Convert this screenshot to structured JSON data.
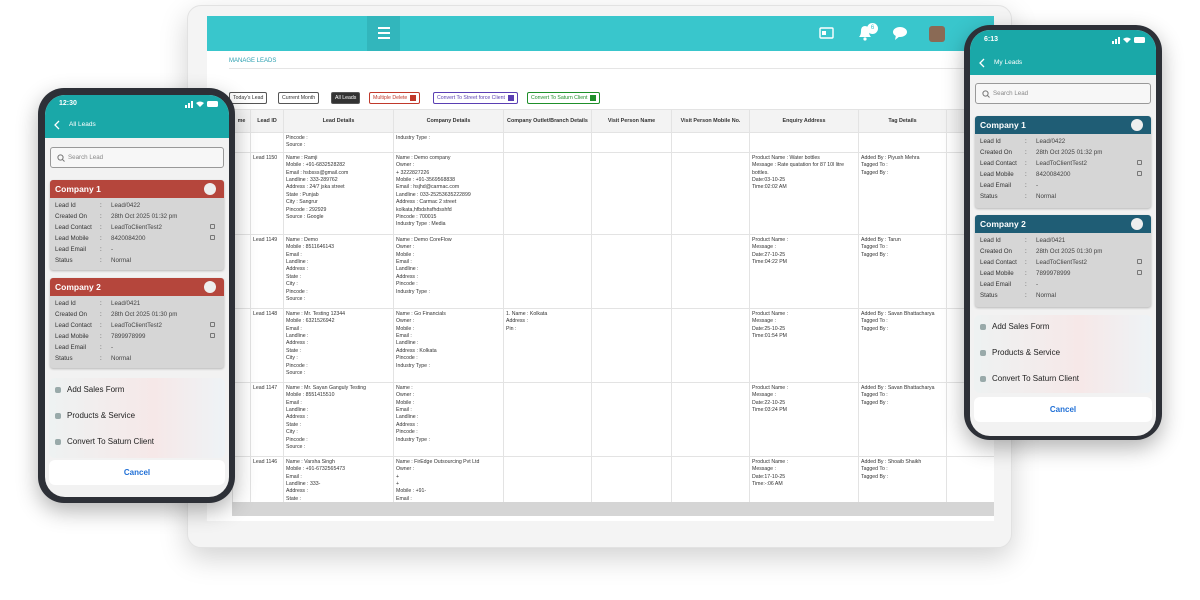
{
  "tablet": {
    "notification_count": "6",
    "breadcrumb": "MANAGE LEADS",
    "filters": [
      "Today's Lead",
      "Current Month",
      "All Leads",
      "Multiple Delete",
      "Convert To Street force Client",
      "Convert To Saturn Client"
    ],
    "columns": [
      "me",
      "Lead ID",
      "Lead Details",
      "Company Details",
      "Company Outlet/Branch Details",
      "Visit Person Name",
      "Visit Person Mobile No.",
      "Enquiry Address",
      "Tag Details"
    ],
    "rows": [
      {
        "lead_details": [
          "Pincode :",
          "Source :"
        ],
        "company_details": [
          "Industry Type :"
        ]
      },
      {
        "lead_id": "Lead 1150",
        "lead_details": [
          "Name : Ramji",
          "Mobile : +91-6832528282",
          "Email : hsbsss@gmail.com",
          "Landline : 333-289762",
          "Address : 24/7 jska street",
          "State : Punjab",
          "City : Sangrur",
          "Pincode : 292929",
          "Source : Google"
        ],
        "company_details": [
          "Name : Demo company",
          "Owner :",
          "+ 3222827226",
          "Mobile : +91-3569568838",
          "Email : hsjhd@carmac.com",
          "Landline : 033-25253635222899",
          "Address : Carmac 2 street",
          "kolkata,hfbdshsfhdsshfd",
          "Pincode : 700015",
          "Industry Type : Media"
        ],
        "enquiry": [
          "Product Name : Water bottles",
          "Message : Rate quatation for 87 10l litre",
          "bottles.",
          "Date:03-10-25",
          "Time:02:02 AM"
        ],
        "tags": [
          "Added By : Piyush Mehra",
          "Tagged To :",
          "Tagged By :"
        ]
      },
      {
        "lead_id": "Lead 1149",
        "lead_details": [
          "Name : Demo",
          "Mobile : 8511646143",
          "Email :",
          "Landline :",
          "Address :",
          "State :",
          "City :",
          "Pincode :",
          "Source :"
        ],
        "company_details": [
          "Name : Demo CoreFlow",
          "Owner :",
          "Mobile :",
          "Email :",
          "Landline :",
          "Address :",
          "Pincode :",
          "Industry Type :"
        ],
        "enquiry": [
          "Product Name :",
          "Message :",
          "Date:27-10-25",
          "Time:04:22 PM"
        ],
        "tags": [
          "Added By : Tarun",
          "Tagged To :",
          "Tagged By :"
        ]
      },
      {
        "lead_id": "Lead 1148",
        "lead_details": [
          "Name : Mr. Testing 12344",
          "Mobile : 6321526942",
          "Email :",
          "Landline :",
          "Address :",
          "State :",
          "City :",
          "Pincode :",
          "Source :"
        ],
        "company_details": [
          "Name : Go Financials",
          "Owner :",
          "Mobile :",
          "Email :",
          "Landline :",
          "Address : Kolkata",
          "Pincode :",
          "Industry Type :"
        ],
        "outlet_details": [
          "1. Name : Kolkata",
          "Address :",
          "Pin :"
        ],
        "enquiry": [
          "Product Name :",
          "Message :",
          "Date:25-10-25",
          "Time:01:54 PM"
        ],
        "tags": [
          "Added By : Savan Bhattacharya",
          "Tagged To :",
          "Tagged By :"
        ]
      },
      {
        "lead_id": "Lead 1147",
        "lead_details": [
          "Name : Mr. Sayan Ganguly Testing",
          "Mobile : 8551415510",
          "Email :",
          "Landline :",
          "Address :",
          "State :",
          "City :",
          "Pincode :",
          "Source :"
        ],
        "company_details": [
          "Name :",
          "Owner :",
          "Mobile :",
          "Email :",
          "Landline :",
          "Address :",
          "Pincode :",
          "Industry Type :"
        ],
        "enquiry": [
          "Product Name :",
          "Message :",
          "Date:22-10-25",
          "Time:03:24 PM"
        ],
        "tags": [
          "Added By : Savan Bhattacharya",
          "Tagged To :",
          "Tagged By :"
        ]
      },
      {
        "lead_id": "Lead 1146",
        "lead_details": [
          "Name : Varsha Singh",
          "Mobile : +91-6732565473",
          "Email :",
          "Landline : 333-",
          "Address :",
          "State :"
        ],
        "company_details": [
          "Name : FirEdge Outsourcing Pvt Ltd",
          "Owner :",
          "+",
          "+",
          "Mobile : +91-",
          "Email :"
        ],
        "enquiry": [
          "Product Name :",
          "Message :",
          "Date:17-10-25",
          "Time:-:06 AM"
        ],
        "tags": [
          "Added By : Shoaib Shaikh",
          "Tagged To :",
          "Tagged By :"
        ]
      }
    ]
  },
  "phone_left": {
    "time": "12:30",
    "title": "All Leads",
    "search_placeholder": "Search Lead",
    "separator": ":",
    "field_labels": [
      "Lead Id",
      "Created On",
      "Lead Contact",
      "Lead Mobile",
      "Lead Email",
      "Status"
    ],
    "cards": [
      {
        "name": "Company 1",
        "values": [
          "Lead/0422",
          "28th Oct 2025 01:32 pm",
          "LeadToClientTest2",
          "8420084200",
          "-",
          "Normal"
        ]
      },
      {
        "name": "Company 2",
        "values": [
          "Lead/0421",
          "28th Oct 2025 01:30 pm",
          "LeadToClientTest2",
          "7899978999",
          "-",
          "Normal"
        ]
      }
    ],
    "actions": [
      "Add Sales Form",
      "Products & Service",
      "Convert To Saturn Client"
    ],
    "cancel": "Cancel"
  },
  "phone_right": {
    "time": "6:13",
    "title": "My Leads",
    "search_placeholder": "Search Lead",
    "separator": ":",
    "field_labels": [
      "Lead Id",
      "Created On",
      "Lead Contact",
      "Lead Mobile",
      "Lead Email",
      "Status"
    ],
    "cards": [
      {
        "name": "Company 1",
        "values": [
          "Lead/0422",
          "28th Oct 2025 01:32 pm",
          "LeadToClientTest2",
          "8420084200",
          "-",
          "Normal"
        ]
      },
      {
        "name": "Company 2",
        "values": [
          "Lead/0421",
          "28th Oct 2025 01:30 pm",
          "LeadToClientTest2",
          "7899978999",
          "-",
          "Normal"
        ]
      }
    ],
    "actions": [
      "Add Sales Form",
      "Products & Service",
      "Convert To Saturn Client"
    ],
    "cancel": "Cancel"
  }
}
